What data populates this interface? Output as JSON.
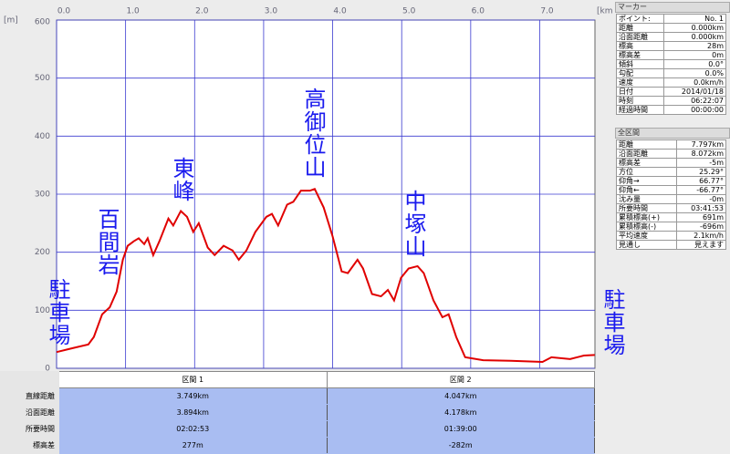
{
  "chart_data": {
    "type": "line",
    "y_label": "[m]",
    "x_label": "[km]",
    "x": [
      0,
      0.24,
      0.46,
      0.54,
      0.66,
      0.77,
      0.87,
      0.96,
      1.03,
      1.12,
      1.19,
      1.27,
      1.32,
      1.4,
      1.49,
      1.62,
      1.69,
      1.8,
      1.89,
      1.98,
      2.06,
      2.19,
      2.29,
      2.42,
      2.55,
      2.64,
      2.75,
      2.88,
      3.04,
      3.12,
      3.21,
      3.34,
      3.43,
      3.54,
      3.67,
      3.74,
      3.87,
      4.0,
      4.13,
      4.22,
      4.36,
      4.44,
      4.57,
      4.7,
      4.8,
      4.89,
      4.99,
      5.1,
      5.23,
      5.32,
      5.46,
      5.59,
      5.68,
      5.79,
      5.92,
      6.18,
      6.58,
      7.04,
      7.17,
      7.44,
      7.64,
      7.797
    ],
    "series": [
      {
        "color": "#e00000",
        "values": [
          28,
          35,
          41,
          54,
          93,
          105,
          132,
          187,
          211,
          219,
          224,
          214,
          224,
          195,
          219,
          258,
          246,
          271,
          261,
          235,
          250,
          208,
          195,
          211,
          203,
          187,
          203,
          235,
          261,
          266,
          246,
          282,
          287,
          306,
          306,
          309,
          277,
          227,
          167,
          164,
          187,
          172,
          128,
          124,
          135,
          117,
          156,
          172,
          176,
          164,
          117,
          88,
          93,
          54,
          19,
          14,
          13,
          11,
          19,
          16,
          22,
          23
        ]
      }
    ],
    "xlim": [
      0,
      7.8
    ],
    "ylim": [
      0,
      600
    ],
    "xticks": [
      {
        "value": 0,
        "label": "0.0"
      },
      {
        "value": 1,
        "label": "1.0"
      },
      {
        "value": 2,
        "label": "2.0"
      },
      {
        "value": 3,
        "label": "3.0"
      },
      {
        "value": 4,
        "label": "4.0"
      },
      {
        "value": 5,
        "label": "5.0"
      },
      {
        "value": 6,
        "label": "6.0"
      },
      {
        "value": 7,
        "label": "7.0"
      }
    ],
    "yticks": [
      0,
      100,
      200,
      300,
      400,
      500,
      600
    ],
    "grid": true,
    "annotations": [
      "駐車場",
      "百間岩",
      "東峰",
      "高御位山",
      "中塚山",
      "駐車場"
    ]
  },
  "marker_panel": {
    "title": "マーカー",
    "rows": [
      [
        "ポイント:",
        "No. 1"
      ],
      [
        "距離",
        "0.000km"
      ],
      [
        "沿面距離",
        "0.000km"
      ],
      [
        "標高",
        "28m"
      ],
      [
        "標高差",
        "0m"
      ],
      [
        "傾斜",
        "0.0°"
      ],
      [
        "勾配",
        "0.0%"
      ],
      [
        "速度",
        "0.0km/h"
      ],
      [
        "日付",
        "2014/01/18"
      ],
      [
        "時刻",
        "06:22:07"
      ],
      [
        "経過時間",
        "00:00:00"
      ]
    ]
  },
  "total_panel": {
    "title": "全区間",
    "rows": [
      [
        "距離",
        "7.797km"
      ],
      [
        "沿面距離",
        "8.072km"
      ],
      [
        "標高差",
        "-5m"
      ],
      [
        "方位",
        "25.29°"
      ],
      [
        "仰角→",
        "66.77°"
      ],
      [
        "仰角←",
        "-66.77°"
      ],
      [
        "沈み量",
        "-0m"
      ],
      [
        "所要時間",
        "03:41:53"
      ],
      [
        "累積標高(+)",
        "691m"
      ],
      [
        "累積標高(-)",
        "-696m"
      ],
      [
        "平均速度",
        "2.1km/h"
      ],
      [
        "見通し",
        "見えます"
      ]
    ]
  },
  "section_table": {
    "row_labels": [
      "直線距離",
      "沿面距離",
      "所要時間",
      "標高差"
    ],
    "sections": [
      {
        "name": "区間 1",
        "values": [
          "3.749km",
          "3.894km",
          "02:02:53",
          "277m"
        ]
      },
      {
        "name": "区間 2",
        "values": [
          "4.047km",
          "4.178km",
          "01:39:00",
          "-282m"
        ]
      }
    ]
  }
}
